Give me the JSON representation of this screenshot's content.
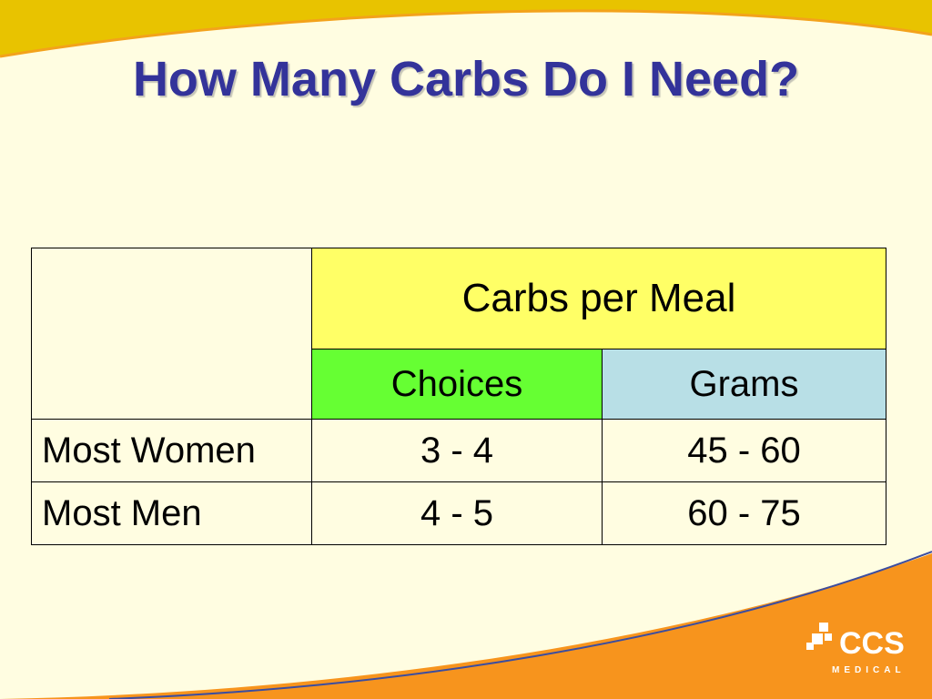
{
  "slide": {
    "title": "How Many Carbs Do I Need?"
  },
  "table": {
    "group_header": "Carbs per Meal",
    "columns": [
      "Choices",
      "Grams"
    ],
    "rows": [
      {
        "label": "Most Women",
        "choices": "3 - 4",
        "grams": "45 - 60"
      },
      {
        "label": "Most Men",
        "choices": "4 - 5",
        "grams": "60 - 75"
      }
    ]
  },
  "logo": {
    "name": "CCS",
    "subtitle": "MEDICAL"
  },
  "colors": {
    "title": "#33339a",
    "background": "#fffde1",
    "group_header_bg": "#ffff66",
    "choices_header_bg": "#66ff33",
    "grams_header_bg": "#b8dfe6",
    "top_wave": "#e8c300",
    "bottom_wave": "#f7941d"
  }
}
